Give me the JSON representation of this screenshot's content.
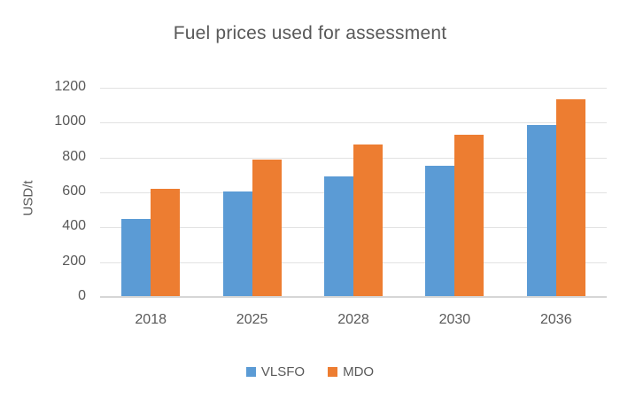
{
  "title": "Fuel prices used for assessment",
  "chart_data": {
    "type": "bar",
    "title": "Fuel prices used for assessment",
    "categories": [
      "2018",
      "2025",
      "2028",
      "2030",
      "2036"
    ],
    "series": [
      {
        "name": "VLSFO",
        "color": "#5B9BD5",
        "values": [
          450,
          605,
          690,
          755,
          985
        ]
      },
      {
        "name": "MDO",
        "color": "#ED7D31",
        "values": [
          620,
          790,
          875,
          930,
          1135
        ]
      }
    ],
    "xlabel": "",
    "ylabel": "USD/t",
    "ylim": [
      0,
      1200
    ],
    "ytick_step": 200,
    "grid": true,
    "legend_position": "bottom"
  },
  "colors": {
    "title_text": "#595959",
    "axis_text": "#595959",
    "gridline": "#e2e2e2",
    "axis_line": "#d6d6d6",
    "background": "#ffffff"
  }
}
